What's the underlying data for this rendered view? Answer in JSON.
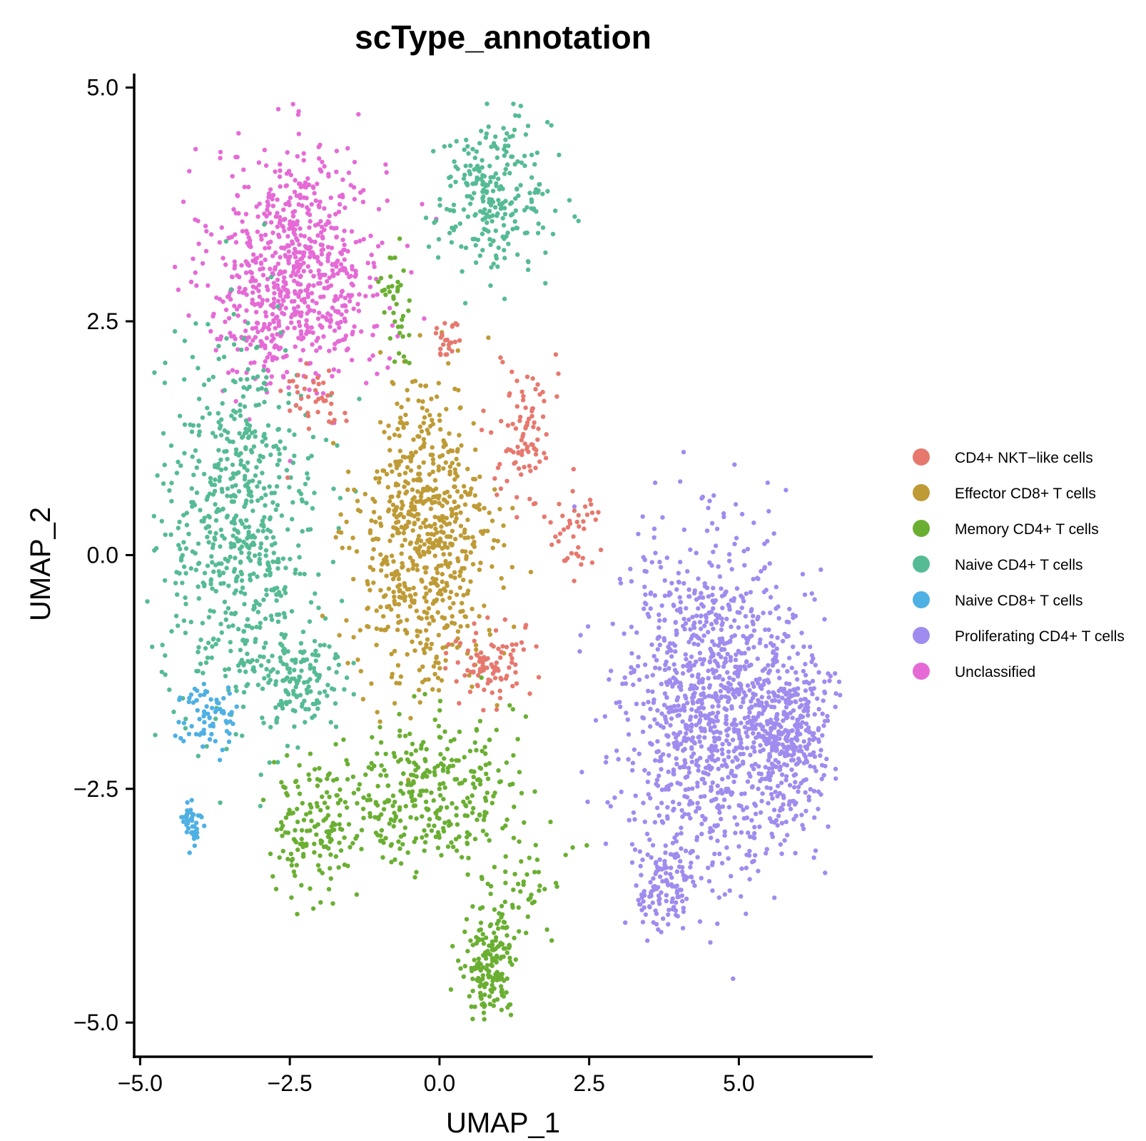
{
  "chart_data": {
    "type": "scatter",
    "title": "scType_annotation",
    "xlabel": "UMAP_1",
    "ylabel": "UMAP_2",
    "xlim": [
      -5.1,
      7.2
    ],
    "ylim": [
      -5.35,
      5.15
    ],
    "xticks": [
      -5.0,
      -2.5,
      0.0,
      2.5,
      5.0
    ],
    "xtick_labels": [
      "−5.0",
      "−2.5",
      "0.0",
      "2.5",
      "5.0"
    ],
    "yticks": [
      -5.0,
      -2.5,
      0.0,
      2.5,
      5.0
    ],
    "ytick_labels": [
      "−5.0",
      "−2.5",
      "0.0",
      "2.5",
      "5.0"
    ],
    "grid": false,
    "legend_position": "right",
    "legend": [
      {
        "name": "CD4+ NKT−like cells",
        "color": "#E6786E"
      },
      {
        "name": "Effector CD8+ T cells",
        "color": "#BF9B36"
      },
      {
        "name": "Memory CD4+ T cells",
        "color": "#6AAF32"
      },
      {
        "name": "Naive CD4+ T cells",
        "color": "#55BB94"
      },
      {
        "name": "Naive CD8+ T cells",
        "color": "#4FB0E3"
      },
      {
        "name": "Proliferating CD4+ T cells",
        "color": "#A08BEE"
      },
      {
        "name": "Unclassified",
        "color": "#E56AD6"
      }
    ],
    "clusters": [
      {
        "series": "Unclassified",
        "n": 700,
        "center": [
          -2.35,
          3.1
        ],
        "spread": [
          0.95,
          0.85
        ],
        "extra_seeds": [
          [
            -3.0,
            2.5,
            0.4,
            0.3
          ]
        ]
      },
      {
        "series": "Naive CD4+ T cells",
        "n": 260,
        "center": [
          0.9,
          3.85
        ],
        "spread": [
          0.65,
          0.55
        ]
      },
      {
        "series": "Naive CD4+ T cells",
        "n": 640,
        "center": [
          -3.35,
          0.3
        ],
        "spread": [
          0.85,
          1.3
        ]
      },
      {
        "series": "Naive CD4+ T cells",
        "n": 150,
        "center": [
          -2.4,
          -1.3
        ],
        "spread": [
          0.55,
          0.45
        ]
      },
      {
        "series": "Effector CD8+ T cells",
        "n": 700,
        "center": [
          -0.25,
          0.15
        ],
        "spread": [
          0.75,
          1.05
        ]
      },
      {
        "series": "CD4+ NKT−like cells",
        "n": 90,
        "center": [
          1.45,
          1.3
        ],
        "spread": [
          0.3,
          0.55
        ]
      },
      {
        "series": "CD4+ NKT−like cells",
        "n": 90,
        "center": [
          0.8,
          -1.15
        ],
        "spread": [
          0.45,
          0.3
        ]
      },
      {
        "series": "CD4+ NKT−like cells",
        "n": 25,
        "center": [
          0.1,
          2.35
        ],
        "spread": [
          0.12,
          0.15
        ]
      },
      {
        "series": "CD4+ NKT−like cells",
        "n": 40,
        "center": [
          -2.1,
          1.6
        ],
        "spread": [
          0.35,
          0.35
        ]
      },
      {
        "series": "CD4+ NKT−like cells",
        "n": 40,
        "center": [
          2.2,
          0.3
        ],
        "spread": [
          0.35,
          0.3
        ]
      },
      {
        "series": "Memory CD4+ T cells",
        "n": 330,
        "center": [
          -0.2,
          -2.55
        ],
        "spread": [
          0.95,
          0.55
        ]
      },
      {
        "series": "Memory CD4+ T cells",
        "n": 140,
        "center": [
          -2.1,
          -2.9
        ],
        "spread": [
          0.45,
          0.45
        ]
      },
      {
        "series": "Memory CD4+ T cells",
        "n": 180,
        "center": [
          0.85,
          -4.4
        ],
        "spread": [
          0.3,
          0.35
        ]
      },
      {
        "series": "Memory CD4+ T cells",
        "n": 40,
        "center": [
          -0.7,
          2.7
        ],
        "spread": [
          0.2,
          0.35
        ]
      },
      {
        "series": "Memory CD4+ T cells",
        "n": 50,
        "center": [
          1.4,
          -3.5
        ],
        "spread": [
          0.5,
          0.4
        ]
      },
      {
        "series": "Proliferating CD4+ T cells",
        "n": 1150,
        "center": [
          4.6,
          -1.6
        ],
        "spread": [
          1.05,
          1.15
        ]
      },
      {
        "series": "Proliferating CD4+ T cells",
        "n": 300,
        "center": [
          5.85,
          -1.9
        ],
        "spread": [
          0.45,
          0.55
        ]
      },
      {
        "series": "Proliferating CD4+ T cells",
        "n": 120,
        "center": [
          3.8,
          -3.55
        ],
        "spread": [
          0.35,
          0.3
        ]
      },
      {
        "series": "Naive CD8+ T cells",
        "n": 70,
        "center": [
          -3.9,
          -1.75
        ],
        "spread": [
          0.35,
          0.25
        ]
      },
      {
        "series": "Naive CD8+ T cells",
        "n": 40,
        "center": [
          -4.15,
          -2.85
        ],
        "spread": [
          0.1,
          0.15
        ]
      }
    ]
  }
}
